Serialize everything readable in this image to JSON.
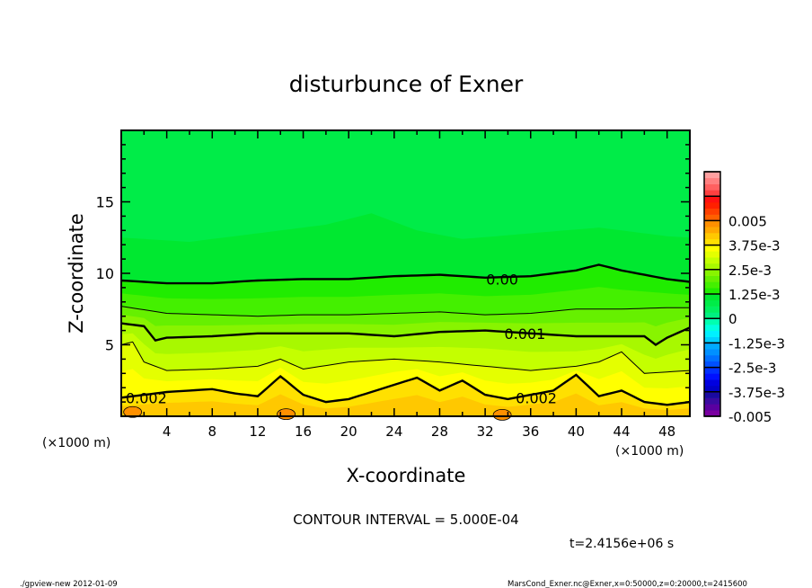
{
  "chart_data": {
    "type": "heatmap",
    "subtype": "filled-contour",
    "title": "disturbunce of Exner",
    "xlabel": "X-coordinate",
    "ylabel": "Z-coordinate",
    "x_unit_label": "(×1000 m)",
    "y_unit_label": "(×1000 m)",
    "xlim": [
      0,
      50
    ],
    "ylim": [
      0,
      20
    ],
    "x_ticks": [
      4,
      8,
      12,
      16,
      20,
      24,
      28,
      32,
      36,
      40,
      44,
      48
    ],
    "y_ticks": [
      5,
      10,
      15
    ],
    "contour_interval_text": "CONTOUR INTERVAL = 5.000E-04",
    "time_text": "t=2.4156e+06 s",
    "contours": [
      {
        "value": 0.002,
        "x": [
          0,
          4,
          8,
          10,
          12,
          14,
          16,
          18,
          20,
          24,
          26,
          28,
          30,
          32,
          34,
          38,
          40,
          42,
          44,
          46,
          48,
          50
        ],
        "z": [
          1.3,
          1.7,
          1.9,
          1.6,
          1.4,
          2.8,
          1.5,
          1.0,
          1.2,
          2.2,
          2.7,
          1.8,
          2.5,
          1.5,
          1.2,
          1.8,
          2.9,
          1.4,
          1.8,
          1.0,
          0.8,
          1.0
        ]
      },
      {
        "value": 0.0015,
        "x": [
          0,
          1,
          2,
          4,
          8,
          12,
          14,
          16,
          20,
          24,
          28,
          32,
          36,
          40,
          42,
          44,
          46,
          50
        ],
        "z": [
          5.0,
          5.2,
          3.8,
          3.2,
          3.3,
          3.5,
          4.0,
          3.3,
          3.8,
          4.0,
          3.8,
          3.5,
          3.2,
          3.5,
          3.8,
          4.5,
          3.0,
          3.2
        ]
      },
      {
        "value": 0.001,
        "x": [
          0,
          2,
          3,
          4,
          8,
          12,
          16,
          20,
          24,
          28,
          32,
          36,
          40,
          44,
          46,
          47,
          48,
          50
        ],
        "z": [
          6.5,
          6.3,
          5.3,
          5.5,
          5.6,
          5.8,
          5.8,
          5.8,
          5.6,
          5.9,
          6.0,
          5.8,
          5.6,
          5.6,
          5.6,
          5.0,
          5.5,
          6.2
        ]
      },
      {
        "value": 0.0005,
        "x": [
          0,
          4,
          8,
          12,
          16,
          20,
          24,
          28,
          32,
          36,
          40,
          44,
          48,
          50
        ],
        "z": [
          7.7,
          7.2,
          7.1,
          7.0,
          7.1,
          7.1,
          7.2,
          7.3,
          7.1,
          7.2,
          7.5,
          7.5,
          7.6,
          7.6
        ]
      },
      {
        "value": 0.0,
        "x": [
          0,
          4,
          8,
          12,
          16,
          20,
          24,
          28,
          32,
          36,
          40,
          42,
          44,
          48,
          50
        ],
        "z": [
          9.5,
          9.3,
          9.3,
          9.5,
          9.6,
          9.6,
          9.8,
          9.9,
          9.7,
          9.8,
          10.2,
          10.6,
          10.2,
          9.6,
          9.4
        ]
      },
      {
        "value": -0.00025,
        "x": [
          0,
          6,
          12,
          18,
          22,
          26,
          30,
          36,
          42,
          48,
          50
        ],
        "z": [
          12.5,
          12.2,
          12.8,
          13.4,
          14.2,
          13.0,
          12.4,
          12.8,
          13.2,
          12.6,
          12.5
        ]
      }
    ],
    "contour_labels": [
      {
        "text": "0.00",
        "x": 33.5,
        "z": 9.6
      },
      {
        "text": "0.001",
        "x": 35.5,
        "z": 5.8
      },
      {
        "text": "0.002",
        "x": 2.2,
        "z": 1.3
      },
      {
        "text": "0.002",
        "x": 36.5,
        "z": 1.3
      }
    ],
    "colorbar": {
      "min": -0.005,
      "max": 0.005,
      "step": 0.00025,
      "tick_labels": [
        "-0.005",
        "-3.75e-3",
        "-2.5e-3",
        "-1.25e-3",
        "0",
        "1.25e-3",
        "2.5e-3",
        "3.75e-3",
        "0.005"
      ],
      "colors": [
        "#7a00a0",
        "#5a00a0",
        "#3a0aa0",
        "#1a0aa0",
        "#0000c8",
        "#0000e0",
        "#0010ff",
        "#0030ff",
        "#0050ff",
        "#0070ff",
        "#0090ff",
        "#00aaff",
        "#00d0ff",
        "#00f0ff",
        "#00ffe0",
        "#00ffb0",
        "#00f080",
        "#00f060",
        "#00ec48",
        "#00e830",
        "#20ec00",
        "#44f000",
        "#66f000",
        "#88f400",
        "#a8f800",
        "#c4ff00",
        "#e4ff00",
        "#ffff00",
        "#ffe000",
        "#ffc800",
        "#ffa800",
        "#ff9000",
        "#ff6000",
        "#ff4000",
        "#ff2000",
        "#ff1010",
        "#ff4040",
        "#ff6060",
        "#ff8080",
        "#ffa0a0"
      ]
    }
  },
  "footer": {
    "left": "./gpview-new  2012-01-09",
    "right": "MarsCond_Exner.nc@Exner,x=0:50000,z=0:20000,t=2415600"
  }
}
